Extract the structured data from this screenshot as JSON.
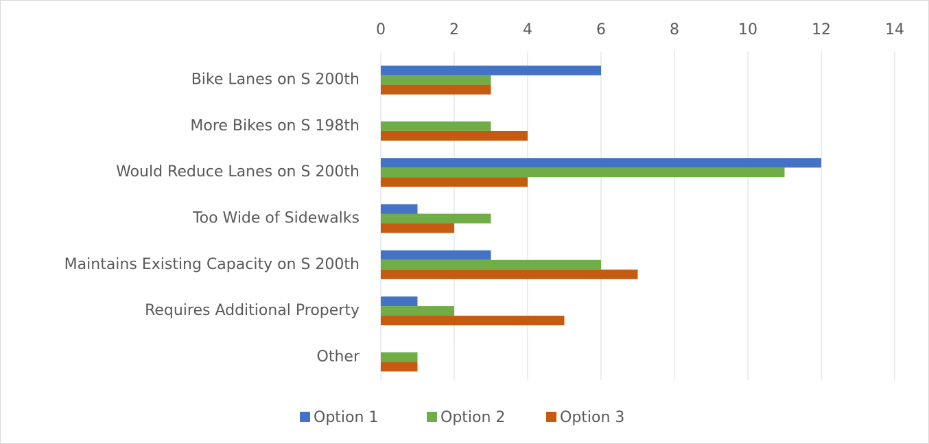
{
  "chart_data": {
    "type": "bar",
    "orientation": "horizontal",
    "categories": [
      "Bike Lanes on S 200th",
      "More Bikes on S 198th",
      "Would Reduce Lanes on S 200th",
      "Too Wide of Sidewalks",
      "Maintains Existing Capacity on S 200th",
      "Requires Additional Property",
      "Other"
    ],
    "series": [
      {
        "name": "Option 1",
        "color": "#4472c4",
        "values": [
          6,
          0,
          12,
          1,
          3,
          1,
          0
        ]
      },
      {
        "name": "Option 2",
        "color": "#70ad47",
        "values": [
          3,
          3,
          11,
          3,
          6,
          2,
          1
        ]
      },
      {
        "name": "Option 3",
        "color": "#c55a11",
        "values": [
          3,
          4,
          4,
          2,
          7,
          5,
          1
        ]
      }
    ],
    "xlim": [
      0,
      14
    ],
    "xticks": [
      0,
      2,
      4,
      6,
      8,
      10,
      12,
      14
    ],
    "grid": true,
    "legend": "bottom"
  }
}
